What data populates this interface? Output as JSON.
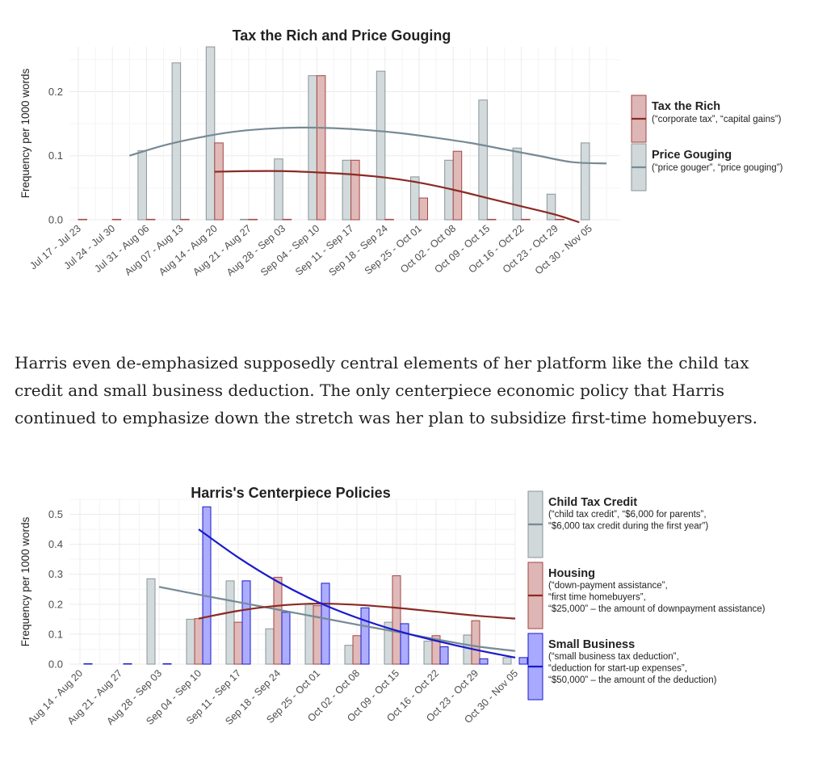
{
  "colors": {
    "grey_fill": "#d0d8da",
    "grey_stroke": "#8a9599",
    "red_fill": "#deb6b5",
    "red_stroke": "#a24643",
    "red_line": "#8b2a24",
    "blue_fill": "#a9a9ff",
    "blue_stroke": "#1a1acc",
    "blue_line": "#1a1acc",
    "grey_line": "#778a95",
    "grid": "#ebebeb",
    "text": "#222222",
    "tick": "#4d4d4d"
  },
  "paragraph": {
    "line1": "Harris even de-emphasized supposedly central elements of her platform like the child tax",
    "line2": "credit and small business deduction. The only centerpiece economic policy that Harris",
    "line3": "continued to emphasize down the stretch was her plan to subsidize first-time homebuyers."
  },
  "chart_data": [
    {
      "type": "bar",
      "title": "Tax the Rich and Price Gouging",
      "ylabel": "Frequency per 1000 words",
      "xlabel": "",
      "ylim": [
        0,
        0.27
      ],
      "yticks": [
        0.0,
        0.1,
        0.2
      ],
      "ytick_labels": [
        "0.0",
        "0.1",
        "0.2"
      ],
      "grid": true,
      "legend_position": "right",
      "categories": [
        "Jul 17 - Jul 23",
        "Jul 24 - Jul 30",
        "Jul 31 - Aug 06",
        "Aug 07 - Aug 13",
        "Aug 14 - Aug 20",
        "Aug 21 - Aug 27",
        "Aug 28 - Sep 03",
        "Sep 04 - Sep 10",
        "Sep 11 - Sep 17",
        "Sep 18 - Sep 24",
        "Sep 25 - Oct 01",
        "Oct 02 - Oct 08",
        "Oct 09 - Oct 15",
        "Oct 16 - Oct 22",
        "Oct 23 - Oct 29",
        "Oct 30 - Nov 05"
      ],
      "series": [
        {
          "name": "Tax the Rich",
          "description": "(“corporate tax”, “capital gains”)",
          "color": "red",
          "values": [
            0.0,
            0.0,
            0.0,
            0.0,
            0.12,
            0.0,
            0.0,
            0.225,
            0.093,
            0.0,
            0.034,
            0.107,
            0.0,
            0.0,
            0.0,
            null
          ],
          "trend": [
            [
              4,
              0.075
            ],
            [
              5,
              0.076
            ],
            [
              6,
              0.076
            ],
            [
              7,
              0.074
            ],
            [
              8,
              0.071
            ],
            [
              9,
              0.066
            ],
            [
              10,
              0.058
            ],
            [
              11,
              0.047
            ],
            [
              12,
              0.034
            ],
            [
              13,
              0.021
            ],
            [
              14,
              0.008
            ],
            [
              14.7,
              -0.004
            ]
          ]
        },
        {
          "name": "Price Gouging",
          "description": "(“price gouger”, “price gouging”)",
          "color": "grey",
          "values": [
            null,
            null,
            0.108,
            0.245,
            0.27,
            0.0,
            0.095,
            0.225,
            0.093,
            0.232,
            0.067,
            0.093,
            0.187,
            0.112,
            0.04,
            0.12
          ],
          "trend": [
            [
              1.5,
              0.1
            ],
            [
              2.5,
              0.116
            ],
            [
              3.5,
              0.128
            ],
            [
              4.5,
              0.137
            ],
            [
              5.5,
              0.142
            ],
            [
              6.5,
              0.144
            ],
            [
              7.5,
              0.143
            ],
            [
              8.5,
              0.14
            ],
            [
              9.5,
              0.135
            ],
            [
              10.5,
              0.128
            ],
            [
              11.5,
              0.12
            ],
            [
              12.5,
              0.11
            ],
            [
              13.5,
              0.1
            ],
            [
              14.5,
              0.09
            ],
            [
              15.5,
              0.088
            ]
          ]
        }
      ]
    },
    {
      "type": "bar",
      "title": "Harris's Centerpiece Policies",
      "ylabel": "Frequency per 1000 words",
      "xlabel": "",
      "ylim": [
        0,
        0.55
      ],
      "yticks": [
        0.0,
        0.1,
        0.2,
        0.3,
        0.4,
        0.5
      ],
      "ytick_labels": [
        "0.0",
        "0.1",
        "0.2",
        "0.3",
        "0.4",
        "0.5"
      ],
      "grid": true,
      "legend_position": "right",
      "categories": [
        "Aug 14 - Aug 20",
        "Aug 21 - Aug 27",
        "Aug 28 - Sep 03",
        "Sep 04 - Sep 10",
        "Sep 11 - Sep 17",
        "Sep 18 - Sep 24",
        "Sep 25 - Oct 01",
        "Oct 02 - Oct 08",
        "Oct 09 - Oct 15",
        "Oct 16 - Oct 22",
        "Oct 23 - Oct 29",
        "Oct 30 - Nov 05"
      ],
      "series": [
        {
          "name": "Child Tax Credit",
          "description_lines": [
            "(“child tax credit”, “$6,000 for parents”,",
            "“$6,000 tax credit during the first year”)"
          ],
          "color": "grey",
          "values": [
            null,
            null,
            0.285,
            0.15,
            0.278,
            0.118,
            0.2,
            0.063,
            0.14,
            0.077,
            0.097,
            0.022
          ],
          "trend": [
            [
              2,
              0.258
            ],
            [
              3,
              0.232
            ],
            [
              4,
              0.207
            ],
            [
              5,
              0.182
            ],
            [
              6,
              0.157
            ],
            [
              7,
              0.132
            ],
            [
              8,
              0.108
            ],
            [
              9,
              0.083
            ],
            [
              10,
              0.06
            ],
            [
              11,
              0.044
            ]
          ]
        },
        {
          "name": "Housing",
          "description_lines": [
            "(“down-payment assistance”,",
            "“first time homebuyers”,",
            "“$25,000” – the amount of downpayment assistance)"
          ],
          "color": "red",
          "values": [
            null,
            null,
            null,
            0.152,
            0.14,
            0.29,
            0.195,
            0.095,
            0.295,
            0.095,
            0.145,
            null
          ],
          "trend": [
            [
              3,
              0.152
            ],
            [
              4,
              0.178
            ],
            [
              5,
              0.195
            ],
            [
              6,
              0.202
            ],
            [
              7,
              0.198
            ],
            [
              8,
              0.188
            ],
            [
              9,
              0.175
            ],
            [
              10,
              0.162
            ],
            [
              11,
              0.152
            ]
          ]
        },
        {
          "name": "Small Business",
          "description_lines": [
            "(“small business tax deduction”,",
            "“deduction for start-up expenses”,",
            "“$50,000” – the amount of the deduction)"
          ],
          "color": "blue",
          "values": [
            0.0,
            0.0,
            0.0,
            0.525,
            0.278,
            0.173,
            0.27,
            0.188,
            0.135,
            0.058,
            0.018,
            0.022
          ],
          "trend": [
            [
              3,
              0.45
            ],
            [
              4,
              0.356
            ],
            [
              5,
              0.275
            ],
            [
              6,
              0.208
            ],
            [
              7,
              0.155
            ],
            [
              8,
              0.112
            ],
            [
              9,
              0.078
            ],
            [
              10,
              0.048
            ],
            [
              11,
              0.022
            ]
          ]
        }
      ]
    }
  ]
}
